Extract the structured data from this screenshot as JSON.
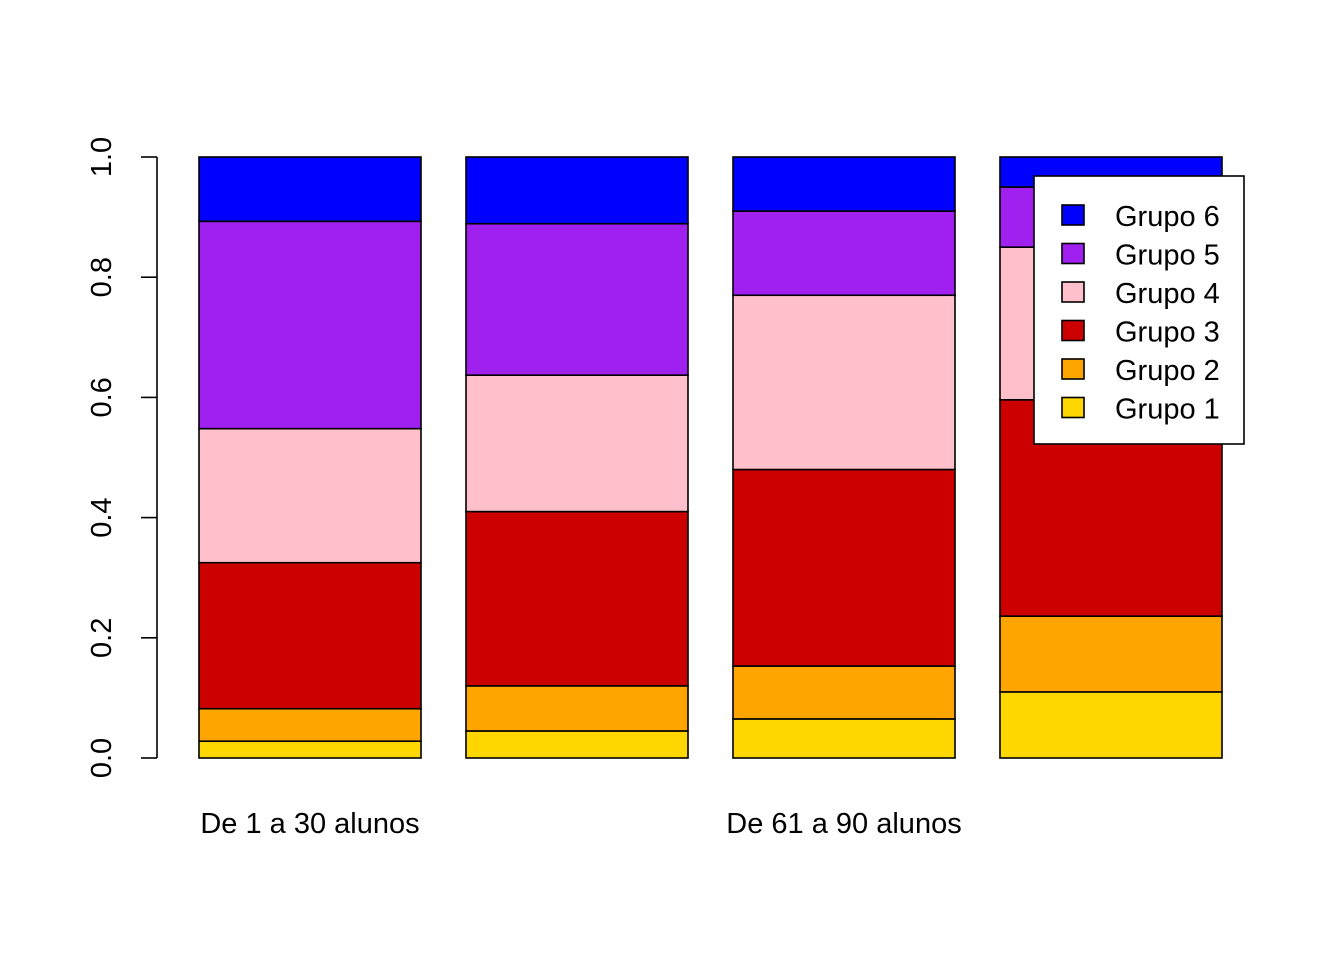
{
  "chart_data": {
    "type": "bar",
    "stacked": true,
    "title": "",
    "xlabel": "",
    "ylabel": "",
    "ylim": [
      0,
      1
    ],
    "yticks": [
      "0.0",
      "0.2",
      "0.4",
      "0.6",
      "0.8",
      "1.0"
    ],
    "ytick_values": [
      0,
      0.2,
      0.4,
      0.6,
      0.8,
      1.0
    ],
    "categories": [
      "De 1 a 30 alunos",
      "",
      "De 61 a 90 alunos",
      ""
    ],
    "series": [
      {
        "name": "Grupo 1",
        "color": "#FFD700",
        "values": [
          0.028,
          0.045,
          0.065,
          0.11
        ]
      },
      {
        "name": "Grupo 2",
        "color": "#FFA500",
        "values": [
          0.054,
          0.075,
          0.088,
          0.126
        ]
      },
      {
        "name": "Grupo 3",
        "color": "#CD0000",
        "values": [
          0.243,
          0.29,
          0.327,
          0.36
        ]
      },
      {
        "name": "Grupo 4",
        "color": "#FFC0CB",
        "values": [
          0.223,
          0.227,
          0.29,
          0.254
        ]
      },
      {
        "name": "Grupo 5",
        "color": "#A020F0",
        "values": [
          0.345,
          0.252,
          0.14,
          0.1
        ]
      },
      {
        "name": "Grupo 6",
        "color": "#0000FF",
        "values": [
          0.107,
          0.111,
          0.09,
          0.05
        ]
      }
    ],
    "legend": {
      "position": "top-right",
      "entries": [
        "Grupo 6",
        "Grupo 5",
        "Grupo 4",
        "Grupo 3",
        "Grupo 2",
        "Grupo 1"
      ]
    }
  }
}
